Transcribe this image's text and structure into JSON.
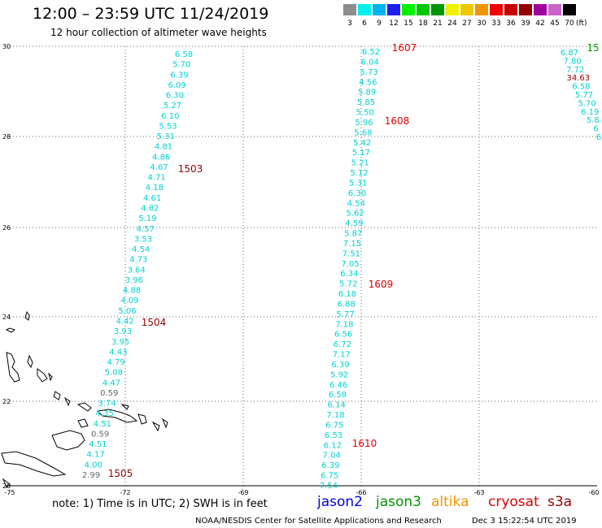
{
  "header": {
    "title": "12:00 – 23:59 UTC 11/24/2019",
    "subtitle": "12 hour collection of altimeter wave heights"
  },
  "legend": {
    "unit": "(ft)",
    "items": [
      {
        "label": "3",
        "color": "#8c8c8c"
      },
      {
        "label": "6",
        "color": "#00f0f0"
      },
      {
        "label": "9",
        "color": "#00b4f0"
      },
      {
        "label": "12",
        "color": "#1e1ef0"
      },
      {
        "label": "15",
        "color": "#00f000"
      },
      {
        "label": "18",
        "color": "#00c800"
      },
      {
        "label": "21",
        "color": "#009600"
      },
      {
        "label": "24",
        "color": "#f0f000"
      },
      {
        "label": "27",
        "color": "#f0c800"
      },
      {
        "label": "30",
        "color": "#f09600"
      },
      {
        "label": "33",
        "color": "#f00000"
      },
      {
        "label": "36",
        "color": "#c80000"
      },
      {
        "label": "39",
        "color": "#960000"
      },
      {
        "label": "42",
        "color": "#a000a0"
      },
      {
        "label": "45",
        "color": "#c864c8"
      },
      {
        "label": "70",
        "color": "#000000"
      }
    ]
  },
  "axes": {
    "lon_labels": [
      "-75",
      "-72",
      "-69",
      "-66",
      "-63",
      "-60"
    ],
    "lat_labels": [
      "30",
      "28",
      "26",
      "24",
      "22",
      "20"
    ]
  },
  "tracks": [
    {
      "name": "pass-1",
      "color": "#00d2d2",
      "values": [
        "6.58",
        "5.70",
        "6.39",
        "6.09",
        "6.30",
        "5.27",
        "6.10",
        "5.53",
        "5.31",
        "4.81",
        "4.86",
        "4.67",
        "4.71",
        "4.18",
        "4.61",
        "4.82",
        "5.19",
        "4.57",
        "3.53",
        "4.54",
        "4.73",
        "3.64",
        "3.96",
        "4.88",
        "4.09",
        "5.06",
        "4.42",
        "3.93",
        "3.95",
        "4.43",
        "4.79",
        "5.08",
        "4.47",
        "0.59",
        "3.74",
        "4.35",
        "4.51",
        "0.59",
        "4.51",
        "4.17",
        "4.00",
        "2.99"
      ],
      "gray": [
        "0.59",
        "2.99"
      ]
    },
    {
      "name": "pass-2",
      "color": "#00d2d2",
      "values": [
        "6.52",
        "6.04",
        "5.73",
        "4.56",
        "5.89",
        "5.85",
        "5.50",
        "5.96",
        "5.68",
        "5.42",
        "5.17",
        "5.21",
        "5.12",
        "5.31",
        "6.30",
        "4.54",
        "5.62",
        "4.59",
        "5.87",
        "7.15",
        "7.51",
        "7.05",
        "6.34",
        "5.72",
        "6.18",
        "6.88",
        "5.77",
        "7.18",
        "6.56",
        "6.72",
        "7.17",
        "6.39",
        "5.92",
        "6.46",
        "6.58",
        "6.14",
        "7.18",
        "6.75",
        "6.53",
        "6.12",
        "7.04",
        "6.39",
        "6.75",
        "7.54"
      ]
    },
    {
      "name": "pass-3",
      "color": "#00d2d2",
      "values": [
        "6.87",
        "7.80",
        "7.72",
        "34.63",
        "6.58",
        "5.77",
        "5.70",
        "6.19",
        "5.8",
        "6",
        "6"
      ],
      "red": [
        "34.63"
      ]
    }
  ],
  "pass_labels": [
    {
      "text": "1503",
      "color": "#960000"
    },
    {
      "text": "1504",
      "color": "#960000"
    },
    {
      "text": "1505",
      "color": "#960000"
    },
    {
      "text": "1607",
      "color": "#e00000"
    },
    {
      "text": "1608",
      "color": "#e00000"
    },
    {
      "text": "1609",
      "color": "#e00000"
    },
    {
      "text": "1610",
      "color": "#e00000"
    },
    {
      "text": "15",
      "color": "#009600"
    }
  ],
  "footer": {
    "note": "note:  1) Time is in UTC;  2) SWH is in feet",
    "missions": [
      {
        "name": "jason2",
        "color": "#0000e6"
      },
      {
        "name": "jason3",
        "color": "#009600"
      },
      {
        "name": "altika",
        "color": "#f09600"
      },
      {
        "name": "cryosat",
        "color": "#e00000"
      },
      {
        "name": "s3a",
        "color": "#960000"
      }
    ],
    "credit": "NOAA/NESDIS Center for Satellite Applications and Research",
    "timestamp": "Dec  3 15:22:54 UTC 2019"
  }
}
